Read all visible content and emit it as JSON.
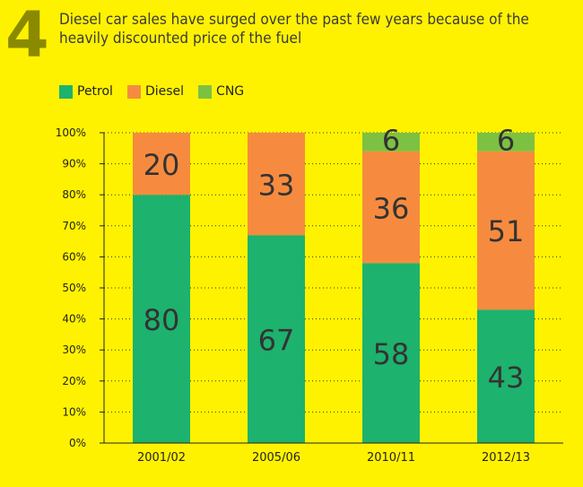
{
  "header": {
    "badge_number": "4",
    "title": "Diesel car sales have surged over the past few years because of the heavily discounted price of the fuel"
  },
  "colors": {
    "background": "#FFF200",
    "petrol": "#1DB26E",
    "diesel": "#F68B3F",
    "cng": "#7DC142",
    "badge": "#8A8A00"
  },
  "chart_data": {
    "type": "bar",
    "stacked": true,
    "title": "Diesel car sales have surged over the past few years because of the heavily discounted price of the fuel",
    "categories": [
      "2001/02",
      "2005/06",
      "2010/11",
      "2012/13"
    ],
    "series": [
      {
        "name": "Petrol",
        "values": [
          80,
          67,
          58,
          43
        ],
        "labels": [
          "80",
          "67",
          "58",
          "43"
        ]
      },
      {
        "name": "Diesel",
        "values": [
          20,
          33,
          36,
          51
        ],
        "labels": [
          "20",
          "33",
          "36",
          "51"
        ]
      },
      {
        "name": "CNG",
        "values": [
          0,
          0,
          6,
          6
        ],
        "labels": [
          "",
          "",
          "6",
          "6"
        ]
      }
    ],
    "yticks": [
      "0%",
      "10%",
      "20%",
      "30%",
      "40%",
      "50%",
      "60%",
      "70%",
      "80%",
      "90%",
      "100%"
    ],
    "ylim": [
      0,
      100
    ],
    "xlabel": "",
    "ylabel": "",
    "legend_position": "top-left",
    "grid": "dotted horizontal"
  }
}
